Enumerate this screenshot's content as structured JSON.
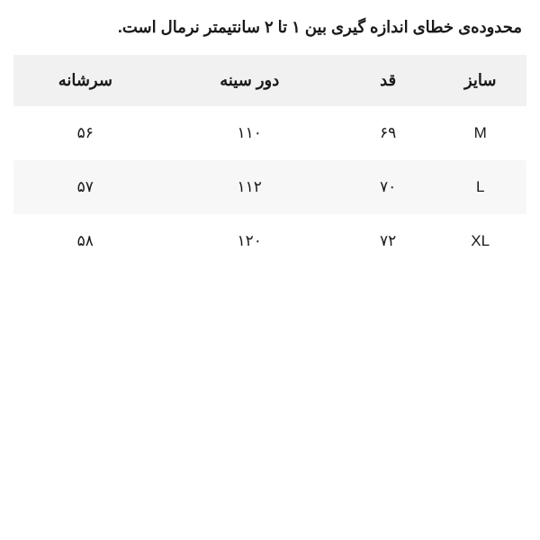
{
  "note": "محدوده‌ی خطای اندازه گیری بین ۱ تا ۲ سانتیمتر نرمال است.",
  "table": {
    "columns": {
      "size": "سایز",
      "height": "قد",
      "chest": "دور سینه",
      "shoulder": "سرشانه"
    },
    "rows": [
      {
        "size": "M",
        "height": "۶۹",
        "chest": "۱۱۰",
        "shoulder": "۵۶"
      },
      {
        "size": "L",
        "height": "۷۰",
        "chest": "۱۱۲",
        "shoulder": "۵۷"
      },
      {
        "size": "XL",
        "height": "۷۲",
        "chest": "۱۲۰",
        "shoulder": "۵۸"
      }
    ],
    "header_bg": "#f1f1f1",
    "alt_row_bg": "#f7f7f7",
    "background_color": "#ffffff",
    "text_color": "#1a1a1a",
    "header_fontsize": 18,
    "cell_fontsize": 17
  }
}
